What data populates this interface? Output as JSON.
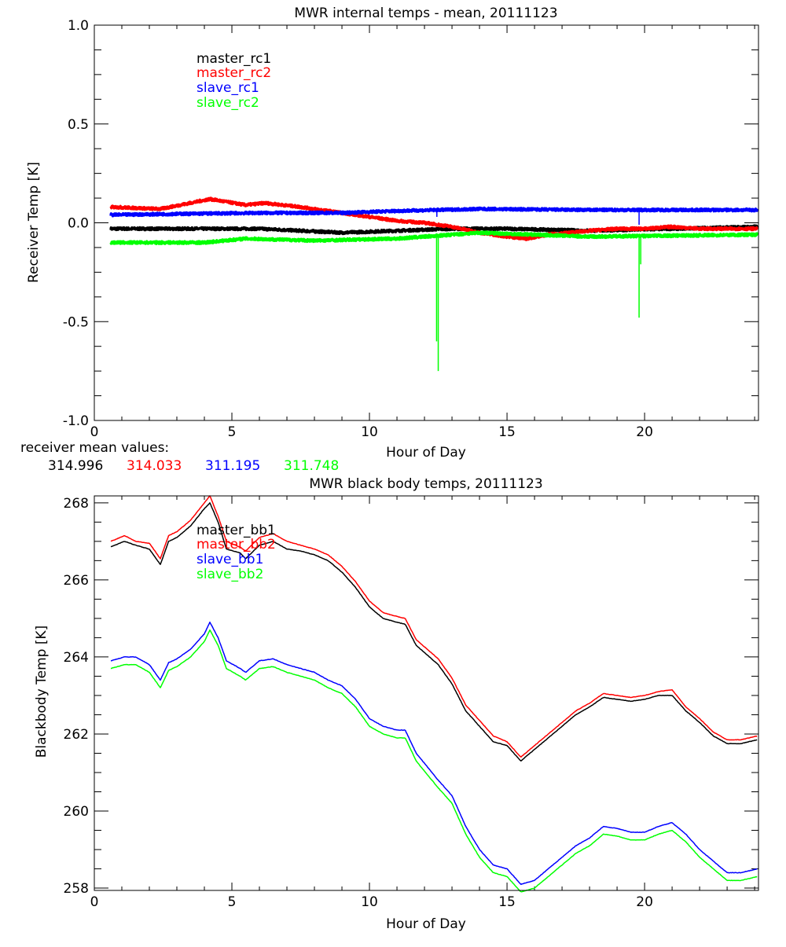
{
  "chart_data": [
    {
      "type": "line",
      "title": "MWR internal temps - mean, 20111123",
      "xlabel": "Hour of Day",
      "ylabel": "Receiver Temp [K]",
      "xlim": [
        0,
        24.14
      ],
      "ylim": [
        -1.0,
        1.0
      ],
      "xticks": [
        "0",
        "5",
        "10",
        "15",
        "20"
      ],
      "yticks": [
        "1.0",
        "0.5",
        "0.0",
        "-0.5",
        "-1.0"
      ],
      "ytick_values": [
        1.0,
        0.5,
        0.0,
        -0.5,
        -1.0
      ],
      "grid": false,
      "legend_placement": "top-left",
      "series": [
        {
          "name": "master_rc1",
          "color": "#000000",
          "x": [
            0.6,
            3,
            6,
            9,
            11,
            13,
            15,
            18,
            21,
            24.1
          ],
          "y": [
            -0.03,
            -0.03,
            -0.03,
            -0.05,
            -0.04,
            -0.03,
            -0.03,
            -0.04,
            -0.03,
            -0.02
          ]
        },
        {
          "name": "master_rc2",
          "color": "#ff0000",
          "x": [
            0.6,
            2.4,
            4.2,
            5.5,
            6.2,
            7.5,
            9,
            10,
            11,
            12,
            13,
            14,
            15,
            15.7,
            16.5,
            18,
            19,
            20,
            21,
            22,
            23,
            24.1
          ],
          "y": [
            0.08,
            0.07,
            0.12,
            0.09,
            0.1,
            0.08,
            0.05,
            0.03,
            0.01,
            0.0,
            -0.02,
            -0.05,
            -0.07,
            -0.08,
            -0.06,
            -0.04,
            -0.03,
            -0.03,
            -0.02,
            -0.03,
            -0.03,
            -0.03
          ]
        },
        {
          "name": "slave_rc1",
          "color": "#0000ff",
          "x": [
            0.6,
            3,
            6,
            9,
            11,
            14,
            18,
            24.1
          ],
          "y": [
            0.04,
            0.045,
            0.05,
            0.05,
            0.06,
            0.07,
            0.065,
            0.065
          ],
          "spikes": [
            [
              12.45,
              0.03
            ],
            [
              19.8,
              -0.01
            ]
          ]
        },
        {
          "name": "slave_rc2",
          "color": "#00ff00",
          "x": [
            0.6,
            4,
            5.5,
            8,
            11,
            13,
            14,
            16,
            18,
            24.1
          ],
          "y": [
            -0.1,
            -0.1,
            -0.08,
            -0.09,
            -0.08,
            -0.06,
            -0.05,
            -0.06,
            -0.07,
            -0.06
          ],
          "spikes": [
            [
              12.44,
              -0.6
            ],
            [
              12.5,
              -0.75
            ],
            [
              19.8,
              -0.48
            ],
            [
              19.86,
              -0.21
            ]
          ]
        }
      ],
      "annotation": {
        "label": "receiver mean values:",
        "values": [
          {
            "text": "314.996",
            "color": "#000000"
          },
          {
            "text": "314.033",
            "color": "#ff0000"
          },
          {
            "text": "311.195",
            "color": "#0000ff"
          },
          {
            "text": "311.748",
            "color": "#00ff00"
          }
        ]
      }
    },
    {
      "type": "line",
      "title": "MWR black body temps, 20111123",
      "xlabel": "Hour of Day",
      "ylabel": "Blackbody Temp [K]",
      "xlim": [
        0,
        24.14
      ],
      "ylim": [
        257.94,
        268.18
      ],
      "xticks": [
        "0",
        "5",
        "10",
        "15",
        "20"
      ],
      "yticks": [
        "268",
        "266",
        "264",
        "262",
        "260",
        "258"
      ],
      "ytick_values": [
        268,
        266,
        264,
        262,
        260,
        258
      ],
      "grid": false,
      "legend_placement": "top-left",
      "x": [
        0.6,
        1.1,
        1.5,
        2.0,
        2.4,
        2.7,
        3.0,
        3.5,
        4.0,
        4.2,
        4.5,
        4.8,
        5.3,
        5.5,
        6.0,
        6.5,
        7.0,
        7.5,
        8.0,
        8.5,
        9.0,
        9.5,
        10.0,
        10.5,
        11.0,
        11.3,
        11.7,
        12.5,
        13.0,
        13.5,
        14.0,
        14.5,
        15.0,
        15.5,
        16.0,
        16.5,
        17.0,
        17.5,
        18.0,
        18.5,
        19.0,
        19.5,
        20.0,
        20.5,
        21.0,
        21.5,
        22.0,
        22.5,
        23.0,
        23.5,
        24.1
      ],
      "series": [
        {
          "name": "master_bb1",
          "color": "#000000",
          "y": [
            266.86,
            267.0,
            266.9,
            266.8,
            266.4,
            267.0,
            267.1,
            267.4,
            267.85,
            268.0,
            267.5,
            266.8,
            266.7,
            266.55,
            266.9,
            267.0,
            266.8,
            266.75,
            266.65,
            266.5,
            266.2,
            265.8,
            265.3,
            265.0,
            264.9,
            264.85,
            264.3,
            263.8,
            263.3,
            262.6,
            262.2,
            261.8,
            261.7,
            261.3,
            261.6,
            261.9,
            262.2,
            262.5,
            262.7,
            262.95,
            262.9,
            262.85,
            262.9,
            263.0,
            263.0,
            262.6,
            262.3,
            261.95,
            261.75,
            261.75,
            261.85
          ]
        },
        {
          "name": "master_bb2",
          "color": "#ff0000",
          "y": [
            267.0,
            267.15,
            267.0,
            266.95,
            266.55,
            267.15,
            267.25,
            267.55,
            268.0,
            268.18,
            267.65,
            267.0,
            266.85,
            266.75,
            267.1,
            267.2,
            267.0,
            266.9,
            266.8,
            266.65,
            266.35,
            265.95,
            265.45,
            265.15,
            265.05,
            265.0,
            264.45,
            263.95,
            263.45,
            262.75,
            262.35,
            261.95,
            261.8,
            261.4,
            261.7,
            262.0,
            262.3,
            262.6,
            262.8,
            263.05,
            263.0,
            262.95,
            263.0,
            263.1,
            263.15,
            262.7,
            262.4,
            262.05,
            261.85,
            261.85,
            261.95
          ]
        },
        {
          "name": "slave_bb1",
          "color": "#0000ff",
          "y": [
            263.9,
            264.0,
            264.0,
            263.8,
            263.4,
            263.85,
            263.95,
            264.2,
            264.6,
            264.9,
            264.5,
            263.9,
            263.7,
            263.6,
            263.9,
            263.95,
            263.8,
            263.7,
            263.6,
            263.4,
            263.25,
            262.9,
            262.4,
            262.2,
            262.1,
            262.1,
            261.5,
            260.8,
            260.4,
            259.6,
            259.0,
            258.6,
            258.5,
            258.1,
            258.2,
            258.5,
            258.8,
            259.1,
            259.3,
            259.6,
            259.55,
            259.45,
            259.45,
            259.6,
            259.7,
            259.4,
            259.0,
            258.7,
            258.4,
            258.4,
            258.5
          ]
        },
        {
          "name": "slave_bb2",
          "color": "#00ff00",
          "y": [
            263.7,
            263.8,
            263.8,
            263.6,
            263.2,
            263.65,
            263.75,
            264.0,
            264.4,
            264.7,
            264.3,
            263.7,
            263.5,
            263.4,
            263.7,
            263.75,
            263.6,
            263.5,
            263.4,
            263.2,
            263.05,
            262.7,
            262.2,
            262.0,
            261.9,
            261.9,
            261.3,
            260.6,
            260.2,
            259.4,
            258.8,
            258.4,
            258.3,
            257.9,
            258.0,
            258.3,
            258.6,
            258.9,
            259.1,
            259.4,
            259.35,
            259.25,
            259.25,
            259.4,
            259.5,
            259.2,
            258.8,
            258.5,
            258.2,
            258.2,
            258.3
          ]
        }
      ]
    }
  ]
}
